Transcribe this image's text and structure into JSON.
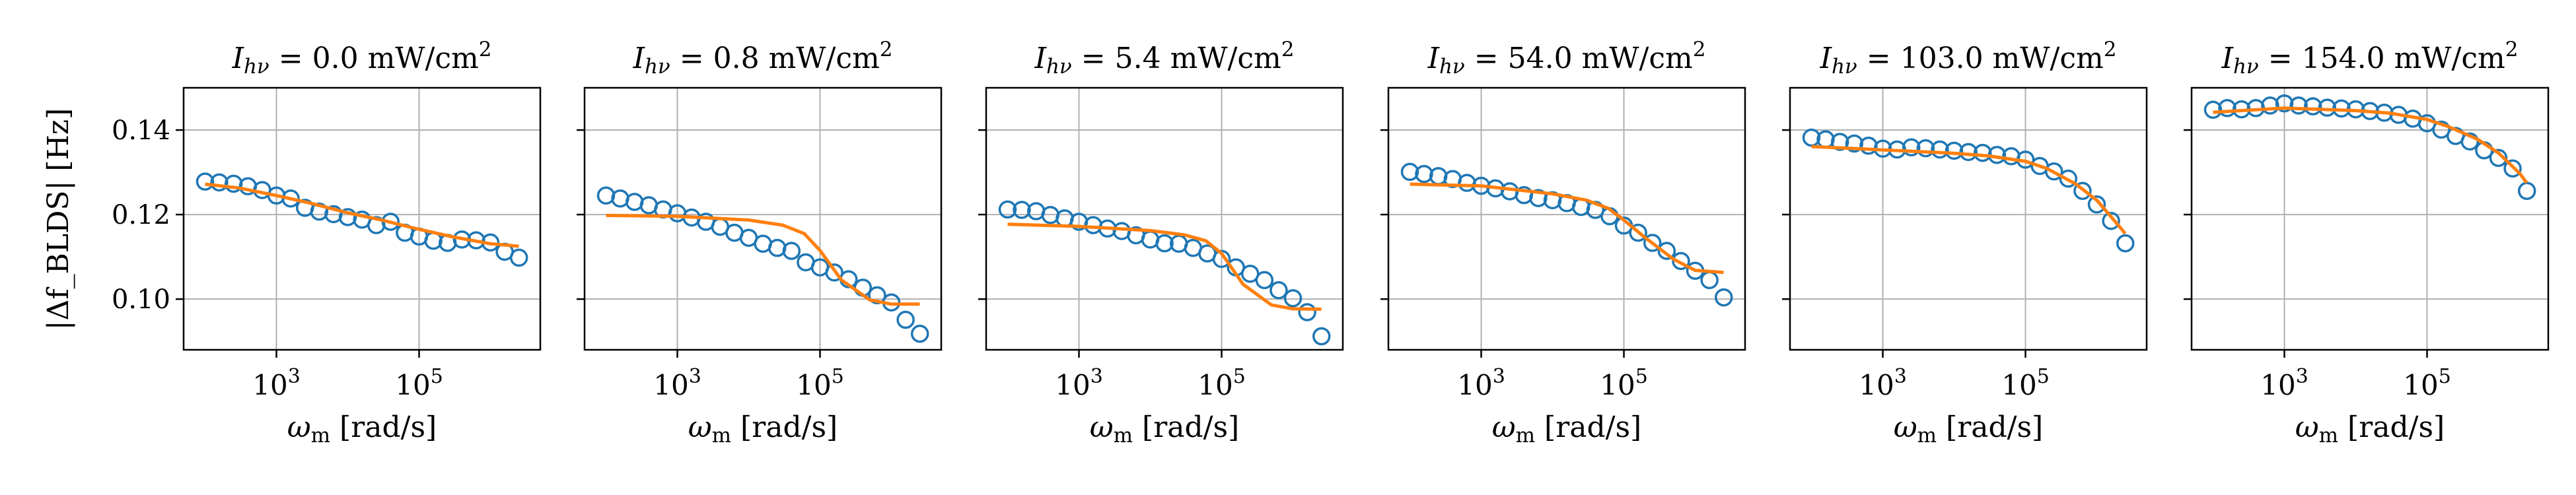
{
  "figure": {
    "ylabel": "|Δf_BLDS| [Hz]",
    "xlabel": "ω_m [rad/s]"
  },
  "colors": {
    "data": "#1f77b4",
    "fit": "#ff7f0e",
    "grid": "#b0b0b0",
    "axis": "#000000"
  },
  "chart_data": [
    {
      "type": "scatter",
      "title": "I_hν = 0.0 mW/cm²",
      "title_value": "0.0",
      "xscale": "log",
      "xlim": [
        50,
        5000000
      ],
      "ylim": [
        0.088,
        0.15
      ],
      "xticks": [
        3,
        5
      ],
      "yticks": [
        "0.10",
        "0.12",
        "0.14"
      ],
      "grid": true,
      "series": [
        {
          "style": "markers",
          "x": [
            100,
            158,
            251,
            398,
            631,
            1000,
            1585,
            2512,
            3981,
            6310,
            10000,
            15849,
            25119,
            39811,
            63096,
            100000,
            158489,
            251189,
            398107,
            630957,
            1000000,
            1584893,
            2511886
          ],
          "y": [
            0.1278,
            0.1276,
            0.1273,
            0.1267,
            0.1258,
            0.1245,
            0.1238,
            0.1216,
            0.1207,
            0.1201,
            0.1194,
            0.1188,
            0.1175,
            0.1183,
            0.1157,
            0.1148,
            0.1138,
            0.1133,
            0.1141,
            0.1139,
            0.1134,
            0.1112,
            0.1098
          ]
        },
        {
          "style": "line",
          "x": [
            100,
            300,
            1000,
            3000,
            10000,
            30000,
            100000,
            300000,
            1000000,
            2500000
          ],
          "y": [
            0.1272,
            0.1263,
            0.1245,
            0.1227,
            0.1204,
            0.1187,
            0.1165,
            0.1147,
            0.1131,
            0.1125
          ]
        }
      ]
    },
    {
      "type": "scatter",
      "title": "I_hν = 0.8 mW/cm²",
      "title_value": "0.8",
      "xscale": "log",
      "xlim": [
        50,
        5000000
      ],
      "ylim": [
        0.088,
        0.15
      ],
      "xticks": [
        3,
        5
      ],
      "yticks": [
        "0.10",
        "0.12",
        "0.14"
      ],
      "grid": true,
      "series": [
        {
          "style": "markers",
          "x": [
            100,
            158,
            251,
            398,
            631,
            1000,
            1585,
            2512,
            3981,
            6310,
            10000,
            15849,
            25119,
            39811,
            63096,
            100000,
            158489,
            251189,
            398107,
            630957,
            1000000,
            1584893,
            2511886
          ],
          "y": [
            0.1245,
            0.1238,
            0.123,
            0.1222,
            0.1212,
            0.1203,
            0.1193,
            0.1183,
            0.1171,
            0.1157,
            0.1145,
            0.1131,
            0.1121,
            0.1114,
            0.1087,
            0.1075,
            0.1063,
            0.1047,
            0.1027,
            0.1009,
            0.0992,
            0.0951,
            0.0918
          ]
        },
        {
          "style": "line",
          "x": [
            100,
            1000,
            10000,
            30000,
            60000,
            100000,
            200000,
            500000,
            1000000,
            2500000
          ],
          "y": [
            0.1198,
            0.1196,
            0.1187,
            0.1175,
            0.1155,
            0.1115,
            0.1045,
            0.0998,
            0.0988,
            0.0988
          ]
        }
      ]
    },
    {
      "type": "scatter",
      "title": "I_hν = 5.4 mW/cm²",
      "title_value": "5.4",
      "xscale": "log",
      "xlim": [
        50,
        5000000
      ],
      "ylim": [
        0.088,
        0.15
      ],
      "xticks": [
        3,
        5
      ],
      "yticks": [
        "0.10",
        "0.12",
        "0.14"
      ],
      "grid": true,
      "series": [
        {
          "style": "markers",
          "x": [
            100,
            158,
            251,
            398,
            631,
            1000,
            1585,
            2512,
            3981,
            6310,
            10000,
            15849,
            25119,
            39811,
            63096,
            100000,
            158489,
            251189,
            398107,
            630957,
            1000000,
            1584893,
            2511886
          ],
          "y": [
            0.1212,
            0.1211,
            0.1208,
            0.1199,
            0.1191,
            0.1183,
            0.1175,
            0.1167,
            0.1161,
            0.1151,
            0.1141,
            0.1132,
            0.1131,
            0.1121,
            0.1108,
            0.1095,
            0.1075,
            0.106,
            0.1045,
            0.1021,
            0.1002,
            0.0969,
            0.0912
          ]
        },
        {
          "style": "line",
          "x": [
            100,
            1000,
            10000,
            30000,
            60000,
            100000,
            200000,
            500000,
            1000000,
            2500000
          ],
          "y": [
            0.1177,
            0.1172,
            0.1162,
            0.1152,
            0.1138,
            0.1108,
            0.1035,
            0.0986,
            0.0977,
            0.0976
          ]
        }
      ]
    },
    {
      "type": "scatter",
      "title": "I_hν = 54.0 mW/cm²",
      "title_value": "54.0",
      "xscale": "log",
      "xlim": [
        50,
        5000000
      ],
      "ylim": [
        0.088,
        0.15
      ],
      "xticks": [
        3,
        5
      ],
      "yticks": [
        "0.10",
        "0.12",
        "0.14"
      ],
      "grid": true,
      "series": [
        {
          "style": "markers",
          "x": [
            100,
            158,
            251,
            398,
            631,
            1000,
            1585,
            2512,
            3981,
            6310,
            10000,
            15849,
            25119,
            39811,
            63096,
            100000,
            158489,
            251189,
            398107,
            630957,
            1000000,
            1584893,
            2511886
          ],
          "y": [
            0.1301,
            0.1296,
            0.1291,
            0.1284,
            0.1275,
            0.1268,
            0.1262,
            0.1255,
            0.1246,
            0.1239,
            0.1234,
            0.1227,
            0.1218,
            0.1211,
            0.1196,
            0.1174,
            0.1157,
            0.1133,
            0.1114,
            0.109,
            0.1067,
            0.1045,
            0.1004
          ]
        },
        {
          "style": "line",
          "x": [
            100,
            1000,
            10000,
            30000,
            60000,
            100000,
            200000,
            500000,
            1000000,
            2500000
          ],
          "y": [
            0.1272,
            0.1268,
            0.1249,
            0.1234,
            0.1215,
            0.1187,
            0.1145,
            0.1094,
            0.1068,
            0.1063
          ]
        }
      ]
    },
    {
      "type": "scatter",
      "title": "I_hν = 103.0 mW/cm²",
      "title_value": "103.0",
      "xscale": "log",
      "xlim": [
        50,
        5000000
      ],
      "ylim": [
        0.088,
        0.15
      ],
      "xticks": [
        3,
        5
      ],
      "yticks": [
        "0.10",
        "0.12",
        "0.14"
      ],
      "grid": true,
      "series": [
        {
          "style": "markers",
          "x": [
            100,
            158,
            251,
            398,
            631,
            1000,
            1585,
            2512,
            3981,
            6310,
            10000,
            15849,
            25119,
            39811,
            63096,
            100000,
            158489,
            251189,
            398107,
            630957,
            1000000,
            1584893,
            2511886
          ],
          "y": [
            0.1382,
            0.1378,
            0.1372,
            0.1368,
            0.1363,
            0.1356,
            0.1354,
            0.1359,
            0.1357,
            0.1354,
            0.1351,
            0.1348,
            0.1346,
            0.1341,
            0.1338,
            0.133,
            0.1315,
            0.1302,
            0.1285,
            0.1256,
            0.1224,
            0.1185,
            0.1132
          ]
        },
        {
          "style": "line",
          "x": [
            100,
            1000,
            10000,
            30000,
            100000,
            200000,
            500000,
            1000000,
            2000000,
            2500000
          ],
          "y": [
            0.1361,
            0.1353,
            0.1345,
            0.1339,
            0.1326,
            0.1309,
            0.1273,
            0.1234,
            0.1175,
            0.1155
          ]
        }
      ]
    },
    {
      "type": "scatter",
      "title": "I_hν = 154.0 mW/cm²",
      "title_value": "154.0",
      "xscale": "log",
      "xlim": [
        50,
        5000000
      ],
      "ylim": [
        0.088,
        0.15
      ],
      "xticks": [
        3,
        5
      ],
      "yticks": [
        "0.10",
        "0.12",
        "0.14"
      ],
      "grid": true,
      "series": [
        {
          "style": "markers",
          "x": [
            100,
            158,
            251,
            398,
            631,
            1000,
            1585,
            2512,
            3981,
            6310,
            10000,
            15849,
            25119,
            39811,
            63096,
            100000,
            158489,
            251189,
            398107,
            630957,
            1000000,
            1584893,
            2511886
          ],
          "y": [
            0.1448,
            0.1452,
            0.1449,
            0.1452,
            0.1458,
            0.1463,
            0.1458,
            0.1456,
            0.1453,
            0.1451,
            0.1449,
            0.1445,
            0.1441,
            0.1436,
            0.1427,
            0.1416,
            0.1401,
            0.1386,
            0.1373,
            0.1352,
            0.1334,
            0.1309,
            0.1256
          ]
        },
        {
          "style": "line",
          "x": [
            100,
            1000,
            10000,
            30000,
            100000,
            200000,
            500000,
            1000000,
            2000000,
            2500000
          ],
          "y": [
            0.1442,
            0.1452,
            0.1446,
            0.144,
            0.1425,
            0.1408,
            0.1379,
            0.1346,
            0.1297,
            0.1275
          ]
        }
      ]
    }
  ]
}
